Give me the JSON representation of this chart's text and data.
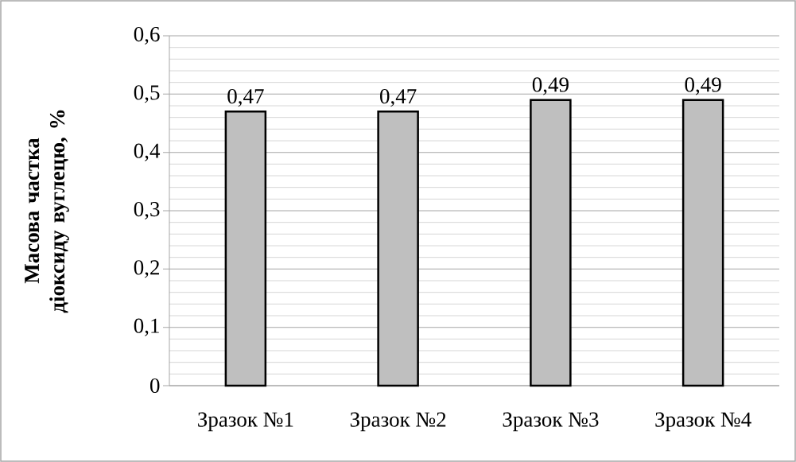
{
  "chart_data": {
    "type": "bar",
    "ylabel": "Масова частка діоксиду вуглецю, %",
    "categories": [
      "Зразок №1",
      "Зразок №2",
      "Зразок №3",
      "Зразок №4"
    ],
    "values": [
      0.47,
      0.47,
      0.49,
      0.49
    ],
    "value_labels": [
      "0,47",
      "0,47",
      "0,49",
      "0,49"
    ],
    "color": "#bfbfbf",
    "ylim": [
      0,
      0.6
    ],
    "yticks": [
      {
        "value": 0,
        "label": "0"
      },
      {
        "value": 0.1,
        "label": "0,1"
      },
      {
        "value": 0.2,
        "label": "0,2"
      },
      {
        "value": 0.3,
        "label": "0,3"
      },
      {
        "value": 0.4,
        "label": "0,4"
      },
      {
        "value": 0.5,
        "label": "0,5"
      },
      {
        "value": 0.6,
        "label": "0,6"
      }
    ],
    "grid": "y"
  }
}
